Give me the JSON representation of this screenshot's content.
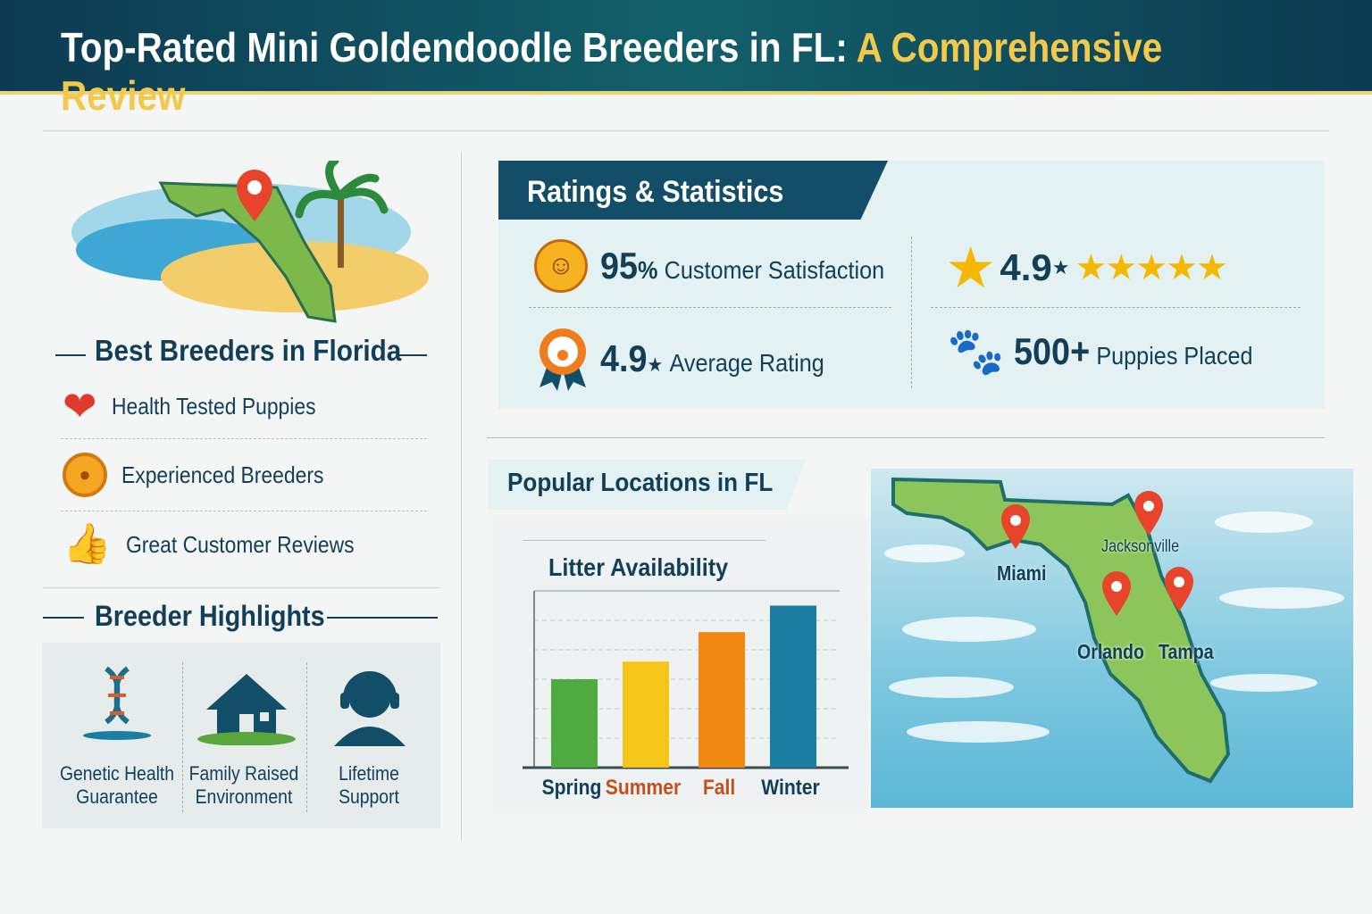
{
  "header": {
    "title_main": "Top-Rated Mini Goldendoodle Breeders in FL:",
    "title_highlight": "A Comprehensive Review"
  },
  "left": {
    "section_title": "Best Breeders in Florida",
    "features": [
      {
        "icon": "heart-check-icon",
        "label": "Health Tested Puppies"
      },
      {
        "icon": "paw-badge-icon",
        "label": "Experienced Breeders"
      },
      {
        "icon": "thumbs-up-icon",
        "label": "Great Customer Reviews"
      }
    ],
    "highlights_title": "Breeder Highlights",
    "highlights": [
      {
        "icon": "dna-icon",
        "line1": "Genetic Health",
        "line2": "Guarantee"
      },
      {
        "icon": "house-icon",
        "line1": "Family Raised",
        "line2": "Environment"
      },
      {
        "icon": "headset-support-icon",
        "line1": "Lifetime",
        "line2": "Support"
      }
    ]
  },
  "ratings": {
    "title": "Ratings & Statistics",
    "satisfaction": {
      "value": "95",
      "unit": "%",
      "label": "Customer Satisfaction",
      "icon": "smiley-icon"
    },
    "stars": {
      "value": "4.9",
      "star_count": 5,
      "icon": "star-icon"
    },
    "average": {
      "value": "4.9",
      "label": "Average Rating",
      "icon": "award-ribbon-icon"
    },
    "puppies": {
      "value": "500+",
      "label": "Puppies Placed",
      "icon": "paw-icon"
    }
  },
  "locations": {
    "title": "Popular Locations in FL",
    "cities": [
      "Miami",
      "Jacksonville",
      "Orlando",
      "Tampa"
    ]
  },
  "colors": {
    "primary": "#123f57",
    "accent": "#f2c94c",
    "pin": "#e8432b"
  },
  "chart_data": {
    "type": "bar",
    "title": "Litter Availability",
    "categories": [
      "Spring",
      "Summer",
      "Fall",
      "Winter"
    ],
    "values": [
      3.0,
      3.6,
      4.6,
      5.5
    ],
    "colors": [
      "#4fab3f",
      "#f5c518",
      "#f08a12",
      "#1a7ea0"
    ],
    "label_colors": [
      "#123f57",
      "#c4511a",
      "#c4511a",
      "#123f57"
    ],
    "ylim": [
      0,
      6
    ],
    "grid": true
  }
}
